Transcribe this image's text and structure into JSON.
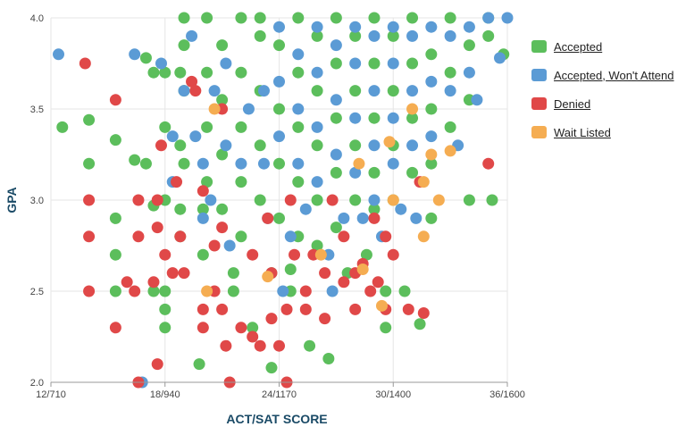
{
  "chart_data": {
    "type": "scatter",
    "xlabel": "ACT/SAT SCORE",
    "ylabel": "GPA",
    "xlim": [
      12,
      36
    ],
    "ylim": [
      2.0,
      4.0
    ],
    "x_ticks": [
      {
        "value": 12,
        "label": "12/710"
      },
      {
        "value": 18,
        "label": "18/940"
      },
      {
        "value": 24,
        "label": "24/1170"
      },
      {
        "value": 30,
        "label": "30/1400"
      },
      {
        "value": 36,
        "label": "36/1600"
      }
    ],
    "y_ticks": [
      {
        "value": 2.0,
        "label": "2.0"
      },
      {
        "value": 2.5,
        "label": "2.5"
      },
      {
        "value": 3.0,
        "label": "3.0"
      },
      {
        "value": 3.5,
        "label": "3.5"
      },
      {
        "value": 4.0,
        "label": "4.0"
      }
    ],
    "grid": true,
    "legend_position": "right",
    "series": [
      {
        "name": "Accepted",
        "color": "#5cbe5c",
        "points": [
          [
            12.6,
            3.4
          ],
          [
            14.0,
            3.44
          ],
          [
            14.0,
            3.2
          ],
          [
            15.4,
            3.33
          ],
          [
            15.4,
            2.9
          ],
          [
            15.4,
            2.7
          ],
          [
            15.4,
            2.5
          ],
          [
            16.4,
            3.22
          ],
          [
            17.0,
            3.2
          ],
          [
            17.0,
            3.78
          ],
          [
            17.4,
            3.7
          ],
          [
            17.4,
            2.97
          ],
          [
            17.4,
            2.5
          ],
          [
            18.0,
            3.7
          ],
          [
            18.0,
            3.4
          ],
          [
            18.0,
            3.0
          ],
          [
            18.0,
            2.5
          ],
          [
            18.0,
            2.4
          ],
          [
            18.0,
            2.3
          ],
          [
            18.8,
            3.7
          ],
          [
            18.8,
            3.3
          ],
          [
            18.8,
            2.95
          ],
          [
            18.8,
            2.8
          ],
          [
            19.0,
            4.0
          ],
          [
            19.0,
            3.85
          ],
          [
            19.0,
            3.6
          ],
          [
            19.0,
            3.2
          ],
          [
            19.8,
            2.1
          ],
          [
            20.0,
            2.95
          ],
          [
            20.0,
            2.7
          ],
          [
            20.2,
            4.0
          ],
          [
            20.2,
            3.7
          ],
          [
            20.2,
            3.4
          ],
          [
            20.2,
            3.1
          ],
          [
            21.0,
            3.85
          ],
          [
            21.0,
            3.55
          ],
          [
            21.0,
            3.25
          ],
          [
            21.0,
            2.95
          ],
          [
            21.6,
            2.6
          ],
          [
            21.6,
            2.5
          ],
          [
            22.0,
            4.0
          ],
          [
            22.0,
            3.7
          ],
          [
            22.0,
            3.4
          ],
          [
            22.0,
            3.1
          ],
          [
            22.0,
            2.8
          ],
          [
            22.6,
            2.3
          ],
          [
            23.0,
            4.0
          ],
          [
            23.0,
            3.9
          ],
          [
            23.0,
            3.6
          ],
          [
            23.0,
            3.3
          ],
          [
            23.0,
            3.0
          ],
          [
            23.6,
            2.6
          ],
          [
            23.6,
            2.08
          ],
          [
            24.0,
            3.85
          ],
          [
            24.0,
            3.5
          ],
          [
            24.0,
            3.2
          ],
          [
            24.0,
            2.9
          ],
          [
            24.6,
            2.62
          ],
          [
            24.6,
            2.5
          ],
          [
            25.0,
            4.0
          ],
          [
            25.0,
            3.7
          ],
          [
            25.0,
            3.4
          ],
          [
            25.0,
            3.1
          ],
          [
            25.0,
            2.8
          ],
          [
            25.6,
            2.2
          ],
          [
            26.0,
            3.9
          ],
          [
            26.0,
            3.6
          ],
          [
            26.0,
            3.3
          ],
          [
            26.0,
            3.0
          ],
          [
            26.0,
            2.75
          ],
          [
            26.6,
            2.13
          ],
          [
            27.0,
            4.0
          ],
          [
            27.0,
            3.75
          ],
          [
            27.0,
            3.45
          ],
          [
            27.0,
            3.15
          ],
          [
            27.0,
            2.85
          ],
          [
            27.6,
            2.6
          ],
          [
            28.0,
            3.9
          ],
          [
            28.0,
            3.6
          ],
          [
            28.0,
            3.3
          ],
          [
            28.0,
            3.0
          ],
          [
            28.6,
            2.7
          ],
          [
            29.0,
            4.0
          ],
          [
            29.0,
            3.75
          ],
          [
            29.0,
            3.45
          ],
          [
            29.0,
            3.15
          ],
          [
            29.0,
            2.95
          ],
          [
            29.6,
            2.5
          ],
          [
            29.6,
            2.3
          ],
          [
            30.0,
            3.9
          ],
          [
            30.0,
            3.6
          ],
          [
            30.0,
            3.3
          ],
          [
            30.0,
            3.0
          ],
          [
            30.6,
            2.5
          ],
          [
            31.0,
            4.0
          ],
          [
            31.0,
            3.75
          ],
          [
            31.0,
            3.45
          ],
          [
            31.0,
            3.15
          ],
          [
            31.4,
            2.32
          ],
          [
            32.0,
            3.8
          ],
          [
            32.0,
            3.5
          ],
          [
            32.0,
            3.2
          ],
          [
            32.0,
            2.9
          ],
          [
            33.0,
            4.0
          ],
          [
            33.0,
            3.7
          ],
          [
            33.0,
            3.4
          ],
          [
            34.0,
            3.85
          ],
          [
            34.0,
            3.55
          ],
          [
            34.0,
            3.0
          ],
          [
            35.0,
            4.0
          ],
          [
            35.0,
            3.9
          ],
          [
            35.2,
            3.0
          ],
          [
            35.8,
            3.8
          ]
        ]
      },
      {
        "name": "Accepted, Won't Attend",
        "color": "#5b9bd5",
        "points": [
          [
            12.4,
            3.8
          ],
          [
            16.4,
            3.8
          ],
          [
            16.8,
            2.0
          ],
          [
            17.8,
            3.75
          ],
          [
            18.4,
            3.35
          ],
          [
            18.4,
            3.1
          ],
          [
            19.0,
            3.6
          ],
          [
            19.4,
            3.9
          ],
          [
            19.6,
            3.35
          ],
          [
            20.0,
            3.2
          ],
          [
            20.0,
            2.9
          ],
          [
            20.4,
            3.0
          ],
          [
            20.6,
            3.6
          ],
          [
            21.2,
            3.75
          ],
          [
            21.2,
            3.3
          ],
          [
            21.4,
            2.75
          ],
          [
            22.0,
            3.2
          ],
          [
            22.4,
            3.5
          ],
          [
            23.2,
            3.6
          ],
          [
            23.2,
            3.2
          ],
          [
            23.4,
            2.9
          ],
          [
            24.0,
            3.95
          ],
          [
            24.0,
            3.65
          ],
          [
            24.0,
            3.35
          ],
          [
            24.2,
            2.5
          ],
          [
            24.6,
            2.8
          ],
          [
            25.0,
            3.8
          ],
          [
            25.0,
            3.5
          ],
          [
            25.0,
            3.2
          ],
          [
            25.4,
            2.95
          ],
          [
            26.0,
            3.95
          ],
          [
            26.0,
            3.7
          ],
          [
            26.0,
            3.4
          ],
          [
            26.0,
            3.1
          ],
          [
            26.6,
            2.7
          ],
          [
            26.8,
            2.5
          ],
          [
            27.0,
            3.85
          ],
          [
            27.0,
            3.55
          ],
          [
            27.0,
            3.25
          ],
          [
            27.4,
            2.9
          ],
          [
            28.0,
            3.95
          ],
          [
            28.0,
            3.75
          ],
          [
            28.0,
            3.45
          ],
          [
            28.0,
            3.15
          ],
          [
            28.4,
            2.9
          ],
          [
            29.0,
            3.9
          ],
          [
            29.0,
            3.6
          ],
          [
            29.0,
            3.3
          ],
          [
            29.0,
            3.0
          ],
          [
            29.4,
            2.8
          ],
          [
            30.0,
            3.95
          ],
          [
            30.0,
            3.75
          ],
          [
            30.0,
            3.45
          ],
          [
            30.0,
            3.2
          ],
          [
            30.4,
            2.95
          ],
          [
            31.0,
            3.9
          ],
          [
            31.0,
            3.6
          ],
          [
            31.0,
            3.3
          ],
          [
            31.2,
            2.9
          ],
          [
            32.0,
            3.95
          ],
          [
            32.0,
            3.65
          ],
          [
            32.0,
            3.35
          ],
          [
            33.0,
            3.9
          ],
          [
            33.0,
            3.6
          ],
          [
            33.4,
            3.3
          ],
          [
            34.0,
            3.95
          ],
          [
            34.0,
            3.7
          ],
          [
            34.4,
            3.55
          ],
          [
            35.0,
            4.0
          ],
          [
            35.6,
            3.78
          ],
          [
            36.0,
            4.0
          ]
        ]
      },
      {
        "name": "Denied",
        "color": "#e04848",
        "points": [
          [
            13.8,
            3.75
          ],
          [
            14.0,
            3.0
          ],
          [
            14.0,
            2.8
          ],
          [
            14.0,
            2.5
          ],
          [
            15.4,
            3.55
          ],
          [
            15.4,
            2.3
          ],
          [
            16.0,
            2.55
          ],
          [
            16.4,
            2.5
          ],
          [
            16.6,
            3.0
          ],
          [
            16.6,
            2.8
          ],
          [
            16.6,
            2.0
          ],
          [
            17.4,
            2.55
          ],
          [
            17.6,
            3.0
          ],
          [
            17.6,
            2.85
          ],
          [
            17.6,
            2.1
          ],
          [
            17.8,
            3.3
          ],
          [
            18.0,
            2.7
          ],
          [
            18.4,
            2.6
          ],
          [
            18.6,
            3.1
          ],
          [
            18.8,
            2.8
          ],
          [
            19.0,
            2.6
          ],
          [
            19.4,
            3.65
          ],
          [
            19.6,
            3.6
          ],
          [
            20.0,
            3.05
          ],
          [
            20.0,
            2.4
          ],
          [
            20.0,
            2.3
          ],
          [
            20.6,
            2.75
          ],
          [
            20.6,
            2.5
          ],
          [
            21.0,
            3.5
          ],
          [
            21.0,
            2.85
          ],
          [
            21.0,
            2.4
          ],
          [
            21.2,
            2.2
          ],
          [
            21.4,
            2.0
          ],
          [
            22.0,
            2.3
          ],
          [
            22.6,
            2.7
          ],
          [
            22.6,
            2.25
          ],
          [
            23.0,
            2.2
          ],
          [
            23.4,
            2.9
          ],
          [
            23.6,
            2.6
          ],
          [
            23.6,
            2.35
          ],
          [
            24.0,
            2.2
          ],
          [
            24.4,
            2.4
          ],
          [
            24.4,
            2.0
          ],
          [
            24.6,
            3.0
          ],
          [
            24.8,
            2.7
          ],
          [
            25.4,
            2.5
          ],
          [
            25.4,
            2.4
          ],
          [
            25.8,
            2.7
          ],
          [
            26.4,
            2.35
          ],
          [
            26.4,
            2.6
          ],
          [
            26.8,
            3.0
          ],
          [
            27.4,
            2.8
          ],
          [
            27.4,
            2.55
          ],
          [
            28.0,
            2.6
          ],
          [
            28.0,
            2.4
          ],
          [
            28.4,
            2.65
          ],
          [
            28.8,
            2.5
          ],
          [
            29.0,
            2.9
          ],
          [
            29.2,
            2.55
          ],
          [
            29.6,
            2.4
          ],
          [
            29.6,
            2.8
          ],
          [
            30.0,
            2.7
          ],
          [
            30.8,
            2.4
          ],
          [
            31.4,
            3.1
          ],
          [
            31.6,
            2.38
          ],
          [
            35.0,
            3.2
          ]
        ]
      },
      {
        "name": "Wait Listed",
        "color": "#f5ad52",
        "points": [
          [
            20.2,
            2.5
          ],
          [
            20.6,
            3.5
          ],
          [
            23.4,
            2.58
          ],
          [
            26.2,
            2.7
          ],
          [
            28.2,
            3.2
          ],
          [
            28.4,
            2.62
          ],
          [
            29.4,
            2.42
          ],
          [
            29.8,
            3.32
          ],
          [
            30.0,
            3.0
          ],
          [
            31.0,
            3.5
          ],
          [
            31.6,
            2.8
          ],
          [
            31.6,
            3.1
          ],
          [
            32.0,
            3.25
          ],
          [
            32.4,
            3.0
          ],
          [
            33.0,
            3.27
          ]
        ]
      }
    ]
  }
}
